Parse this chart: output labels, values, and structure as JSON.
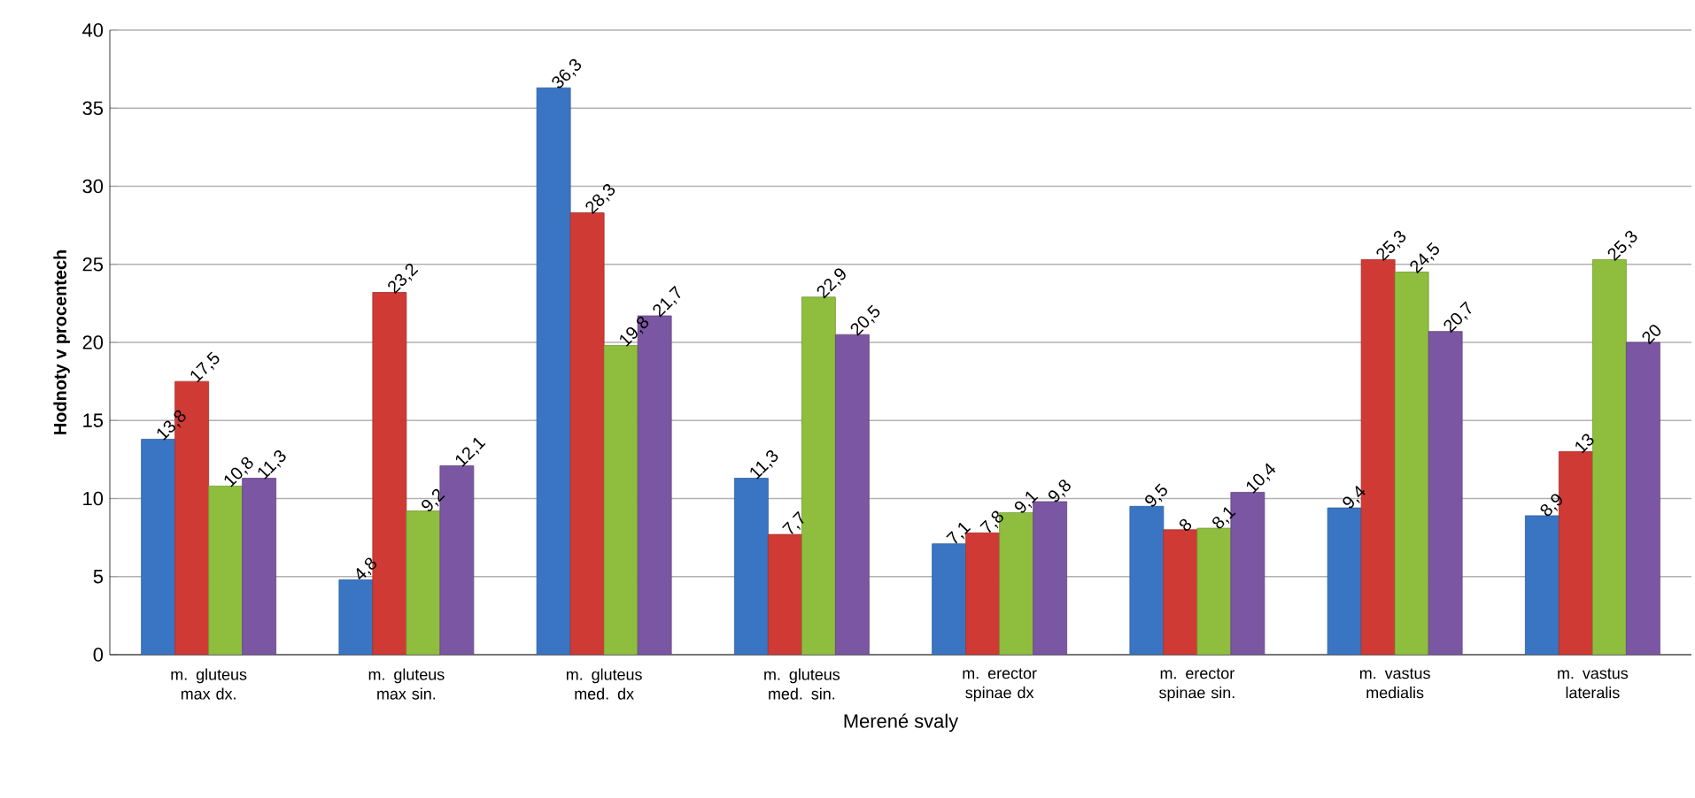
{
  "chart_data": {
    "type": "bar",
    "xlabel": "Merené svaly",
    "ylabel": "Hodnoty v procentech",
    "categories": [
      "m. gluteus max dx.",
      "m. gluteus max sin.",
      "m. gluteus med. dx",
      "m. gluteus med. sin.",
      "m. erector spinae dx",
      "m. erector spinae sin.",
      "m. vastus medialis",
      "m. vastus lateralis"
    ],
    "series": [
      {
        "color": "#3a75c4",
        "values": [
          13.8,
          4.8,
          36.3,
          11.3,
          7.1,
          9.5,
          9.4,
          8.9
        ],
        "value_labels": [
          "13,8",
          "4,8",
          "36,3",
          "11,3",
          "7,1",
          "9,5",
          "9,4",
          "8,9"
        ]
      },
      {
        "color": "#d03a35",
        "values": [
          17.5,
          23.2,
          28.3,
          7.7,
          7.8,
          8,
          25.3,
          13
        ],
        "value_labels": [
          "17,5",
          "23,2",
          "28,3",
          "7,7",
          "7,8",
          "8",
          "25,3",
          "13"
        ]
      },
      {
        "color": "#8fbe3e",
        "values": [
          10.8,
          9.2,
          19.8,
          22.9,
          9.1,
          8.1,
          24.5,
          25.3
        ],
        "value_labels": [
          "10,8",
          "9,2",
          "19,8",
          "22,9",
          "9,1",
          "8,1",
          "24,5",
          "25,3"
        ]
      },
      {
        "color": "#7b56a2",
        "values": [
          11.3,
          12.1,
          21.7,
          20.5,
          9.8,
          10.4,
          20.7,
          20
        ],
        "value_labels": [
          "11,3",
          "12,1",
          "21,7",
          "20,5",
          "9,8",
          "10,4",
          "20,7",
          "20"
        ]
      }
    ],
    "ylim": [
      0,
      40
    ],
    "yticks": [
      0,
      5,
      10,
      15,
      20,
      25,
      30,
      35,
      40
    ],
    "grid": "y"
  }
}
